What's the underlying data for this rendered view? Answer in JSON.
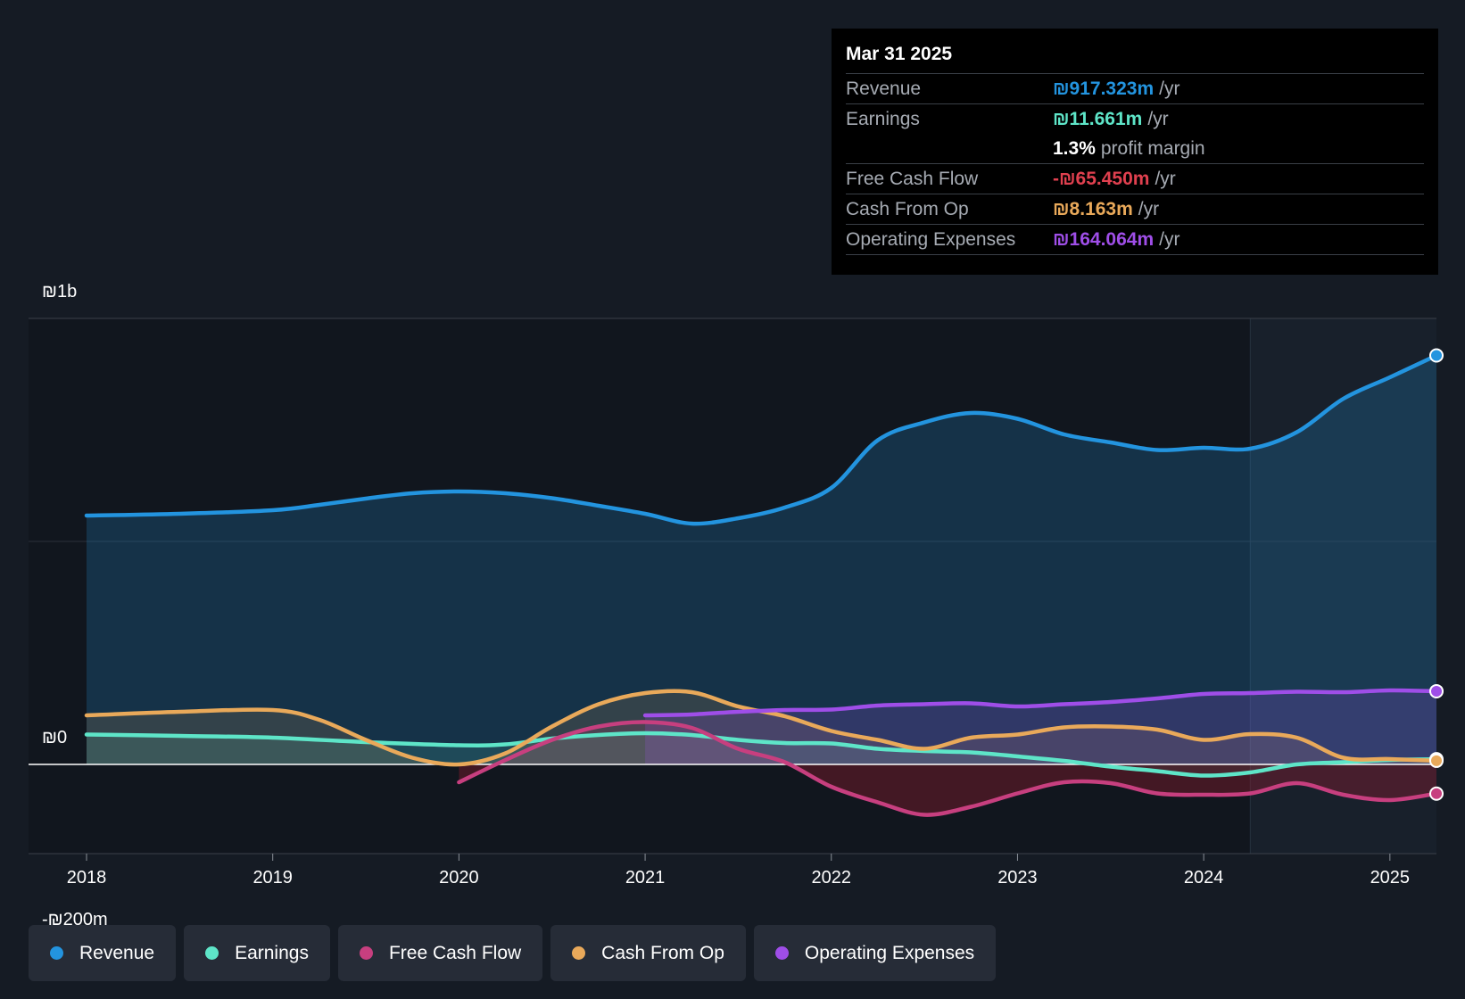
{
  "chart_data": {
    "type": "area",
    "y_tick_labels": [
      "₪1b",
      "₪0",
      "-₪200m"
    ],
    "ylim": [
      -200,
      1000
    ],
    "y_unit": "₪m",
    "x_ticks": [
      "2018",
      "2019",
      "2020",
      "2021",
      "2022",
      "2023",
      "2024",
      "2025"
    ],
    "xlim": [
      2018.0,
      2025.25
    ],
    "highlight_start": 2024.25,
    "series": [
      {
        "name": "Revenue",
        "color": "#2394df",
        "points": [
          [
            2018.0,
            558
          ],
          [
            2018.5,
            562
          ],
          [
            2019.0,
            570
          ],
          [
            2019.25,
            582
          ],
          [
            2019.5,
            596
          ],
          [
            2019.75,
            608
          ],
          [
            2020.0,
            612
          ],
          [
            2020.25,
            608
          ],
          [
            2020.5,
            597
          ],
          [
            2020.75,
            580
          ],
          [
            2021.0,
            562
          ],
          [
            2021.25,
            540
          ],
          [
            2021.5,
            552
          ],
          [
            2021.75,
            576
          ],
          [
            2022.0,
            620
          ],
          [
            2022.25,
            727
          ],
          [
            2022.5,
            767
          ],
          [
            2022.75,
            788
          ],
          [
            2023.0,
            775
          ],
          [
            2023.25,
            740
          ],
          [
            2023.5,
            722
          ],
          [
            2023.75,
            705
          ],
          [
            2024.0,
            710
          ],
          [
            2024.25,
            708
          ],
          [
            2024.5,
            745
          ],
          [
            2024.75,
            820
          ],
          [
            2025.0,
            868
          ],
          [
            2025.25,
            917
          ]
        ]
      },
      {
        "name": "Earnings",
        "color": "#5ee5c8",
        "points": [
          [
            2018.0,
            67
          ],
          [
            2018.5,
            64
          ],
          [
            2019.0,
            60
          ],
          [
            2019.5,
            50
          ],
          [
            2020.0,
            43
          ],
          [
            2020.25,
            45
          ],
          [
            2020.5,
            58
          ],
          [
            2020.75,
            66
          ],
          [
            2021.0,
            70
          ],
          [
            2021.25,
            66
          ],
          [
            2021.5,
            55
          ],
          [
            2021.75,
            48
          ],
          [
            2022.0,
            47
          ],
          [
            2022.25,
            35
          ],
          [
            2022.5,
            30
          ],
          [
            2022.75,
            27
          ],
          [
            2023.0,
            18
          ],
          [
            2023.25,
            8
          ],
          [
            2023.5,
            -5
          ],
          [
            2023.75,
            -15
          ],
          [
            2024.0,
            -25
          ],
          [
            2024.25,
            -18
          ],
          [
            2024.5,
            0
          ],
          [
            2024.75,
            5
          ],
          [
            2025.0,
            10
          ],
          [
            2025.25,
            11.661
          ]
        ]
      },
      {
        "name": "Free Cash Flow",
        "color": "#c73f7f",
        "points": [
          [
            2020.0,
            -40
          ],
          [
            2020.25,
            10
          ],
          [
            2020.5,
            55
          ],
          [
            2020.75,
            85
          ],
          [
            2021.0,
            95
          ],
          [
            2021.25,
            82
          ],
          [
            2021.5,
            35
          ],
          [
            2021.75,
            5
          ],
          [
            2022.0,
            -50
          ],
          [
            2022.25,
            -85
          ],
          [
            2022.5,
            -113
          ],
          [
            2022.75,
            -95
          ],
          [
            2023.0,
            -65
          ],
          [
            2023.25,
            -40
          ],
          [
            2023.5,
            -42
          ],
          [
            2023.75,
            -65
          ],
          [
            2024.0,
            -68
          ],
          [
            2024.25,
            -65
          ],
          [
            2024.5,
            -42
          ],
          [
            2024.75,
            -68
          ],
          [
            2025.0,
            -80
          ],
          [
            2025.25,
            -65.45
          ]
        ]
      },
      {
        "name": "Cash From Op",
        "color": "#e9a95a",
        "points": [
          [
            2018.0,
            110
          ],
          [
            2018.5,
            118
          ],
          [
            2019.0,
            122
          ],
          [
            2019.25,
            100
          ],
          [
            2019.5,
            55
          ],
          [
            2019.75,
            15
          ],
          [
            2020.0,
            0
          ],
          [
            2020.25,
            25
          ],
          [
            2020.5,
            85
          ],
          [
            2020.75,
            135
          ],
          [
            2021.0,
            160
          ],
          [
            2021.25,
            162
          ],
          [
            2021.5,
            130
          ],
          [
            2021.75,
            108
          ],
          [
            2022.0,
            75
          ],
          [
            2022.25,
            55
          ],
          [
            2022.5,
            35
          ],
          [
            2022.75,
            60
          ],
          [
            2023.0,
            67
          ],
          [
            2023.25,
            83
          ],
          [
            2023.5,
            85
          ],
          [
            2023.75,
            78
          ],
          [
            2024.0,
            55
          ],
          [
            2024.25,
            68
          ],
          [
            2024.5,
            60
          ],
          [
            2024.75,
            15
          ],
          [
            2025.0,
            12
          ],
          [
            2025.25,
            8.163
          ]
        ]
      },
      {
        "name": "Operating Expenses",
        "color": "#9f4ee8",
        "points": [
          [
            2021.0,
            110
          ],
          [
            2021.25,
            112
          ],
          [
            2021.5,
            118
          ],
          [
            2021.75,
            122
          ],
          [
            2022.0,
            123
          ],
          [
            2022.25,
            132
          ],
          [
            2022.5,
            135
          ],
          [
            2022.75,
            137
          ],
          [
            2023.0,
            130
          ],
          [
            2023.25,
            135
          ],
          [
            2023.5,
            140
          ],
          [
            2023.75,
            148
          ],
          [
            2024.0,
            158
          ],
          [
            2024.25,
            160
          ],
          [
            2024.5,
            163
          ],
          [
            2024.75,
            162
          ],
          [
            2025.0,
            166
          ],
          [
            2025.25,
            164.064
          ]
        ]
      }
    ]
  },
  "tooltip": {
    "date": "Mar 31 2025",
    "rows": {
      "revenue": {
        "label": "Revenue",
        "value": "₪917.323m",
        "unit": "/yr",
        "color": "#2394df"
      },
      "earnings": {
        "label": "Earnings",
        "value": "₪11.661m",
        "unit": "/yr",
        "color": "#5ee5c8"
      },
      "margin": {
        "value": "1.3%",
        "unit": "profit margin"
      },
      "fcf": {
        "label": "Free Cash Flow",
        "value": "-₪65.450m",
        "unit": "/yr",
        "color": "#e0404f"
      },
      "cfo": {
        "label": "Cash From Op",
        "value": "₪8.163m",
        "unit": "/yr",
        "color": "#e9a95a"
      },
      "opex": {
        "label": "Operating Expenses",
        "value": "₪164.064m",
        "unit": "/yr",
        "color": "#9f4ee8"
      }
    }
  },
  "legend": [
    {
      "label": "Revenue",
      "color": "#2394df"
    },
    {
      "label": "Earnings",
      "color": "#5ee5c8"
    },
    {
      "label": "Free Cash Flow",
      "color": "#c73f7f"
    },
    {
      "label": "Cash From Op",
      "color": "#e9a95a"
    },
    {
      "label": "Operating Expenses",
      "color": "#9f4ee8"
    }
  ]
}
